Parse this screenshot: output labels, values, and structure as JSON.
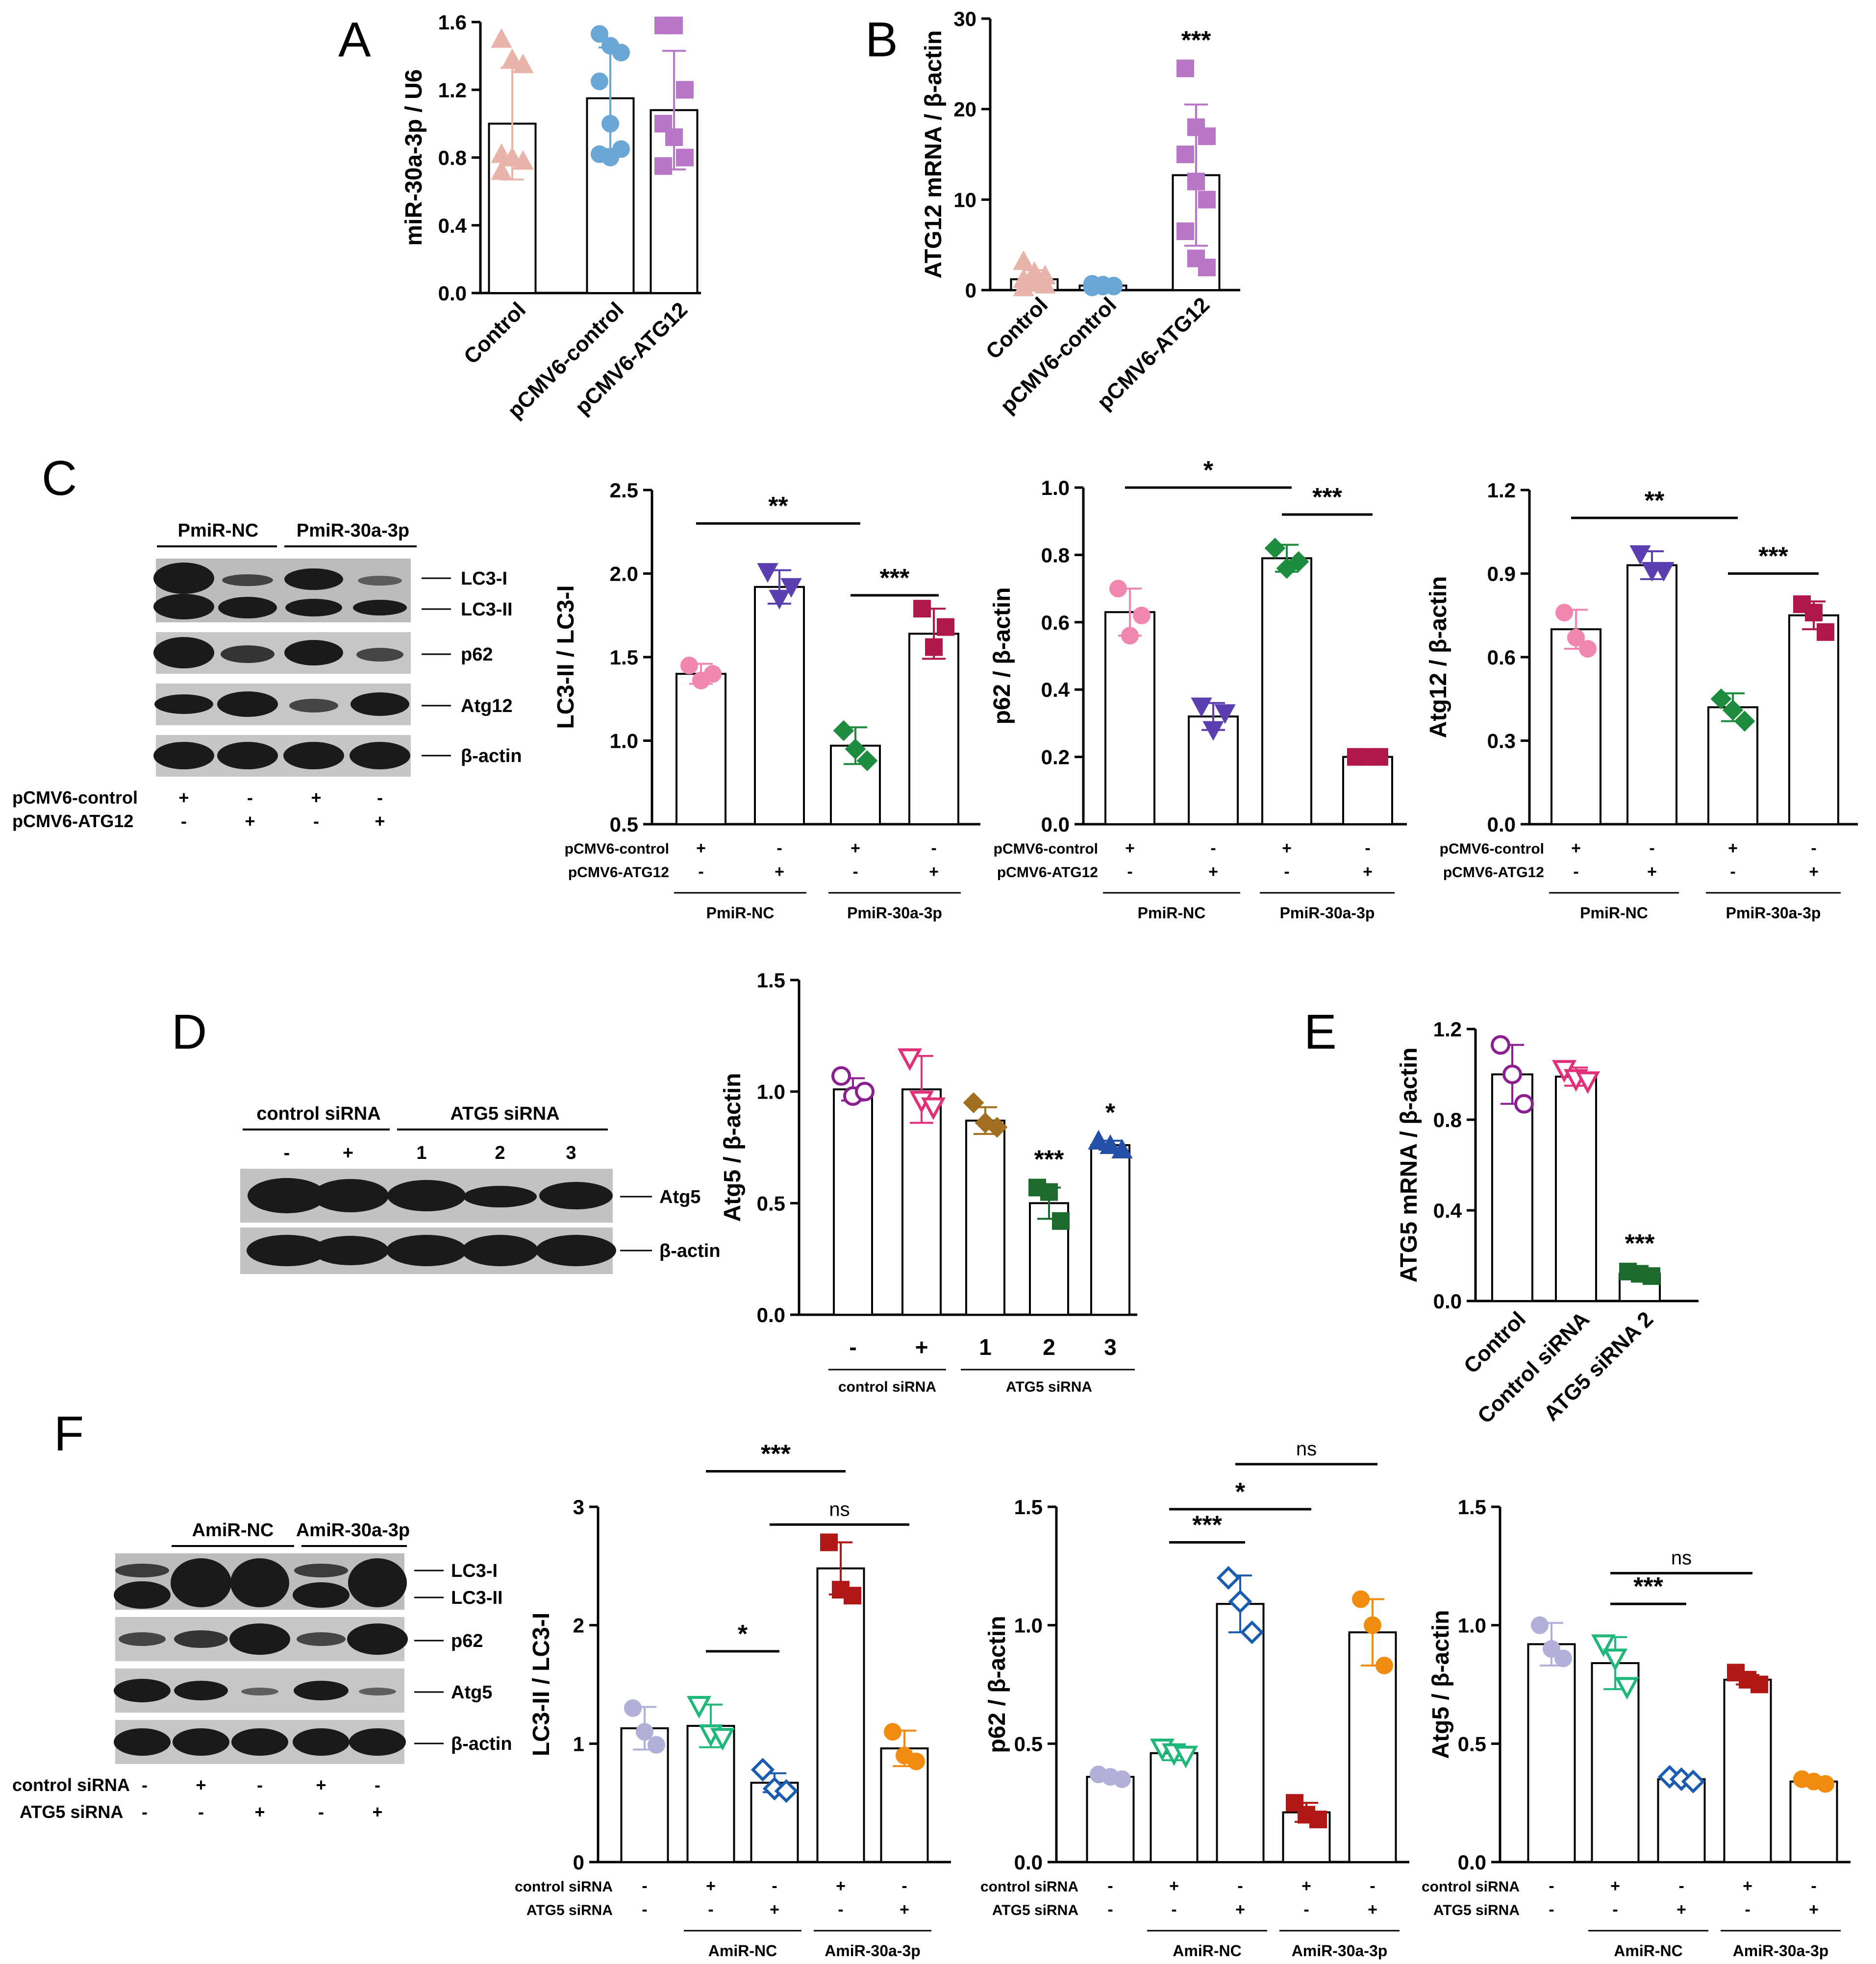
{
  "panel_letters": {
    "A": "A",
    "B": "B",
    "C": "C",
    "D": "D",
    "E": "E",
    "F": "F"
  },
  "chart_data": [
    {
      "id": "A",
      "type": "bar",
      "title": "",
      "ylabel": "miR-30a-3p / U6",
      "ylim": [
        0,
        1.6
      ],
      "yticks": [
        "0.0",
        "0.4",
        "0.8",
        "1.2",
        "1.6"
      ],
      "categories": [
        "Control",
        "pCMV6-control",
        "pCMV6-ATG12"
      ],
      "values": [
        1.0,
        1.15,
        1.08
      ],
      "errors": [
        0.33,
        0.3,
        0.35
      ],
      "colors": [
        "#e8b4aa",
        "#6aa7d4",
        "#b877c6"
      ],
      "markers": [
        "triangle",
        "circle",
        "square"
      ],
      "points": [
        [
          1.5,
          1.38,
          1.35,
          0.82,
          0.8,
          0.78,
          0.72
        ],
        [
          1.53,
          1.46,
          1.42,
          1.25,
          1.0,
          0.85,
          0.82,
          0.8
        ],
        [
          1.58,
          1.58,
          1.2,
          1.0,
          0.92,
          0.8,
          0.75
        ]
      ],
      "annotations": []
    },
    {
      "id": "B",
      "type": "bar",
      "title": "",
      "ylabel": "ATG12 mRNA / β-actin",
      "ylim": [
        0,
        30
      ],
      "yticks": [
        "0",
        "10",
        "20",
        "30"
      ],
      "categories": [
        "Control",
        "pCMV6-control",
        "pCMV6-ATG12"
      ],
      "values": [
        1.2,
        0.5,
        12.7
      ],
      "errors": [
        1.0,
        0.2,
        7.8
      ],
      "colors": [
        "#e8b4aa",
        "#6aa7d4",
        "#b877c6"
      ],
      "markers": [
        "triangle",
        "circle",
        "square"
      ],
      "points": [
        [
          3.2,
          2.0,
          1.6,
          1.2,
          0.8,
          0.6,
          0.3
        ],
        [
          0.7,
          0.6,
          0.5,
          0.5,
          0.4,
          0.4,
          0.3
        ],
        [
          24.5,
          18,
          17,
          15,
          12,
          10,
          6.5,
          3.5,
          2.5
        ]
      ],
      "annotations": [
        {
          "label": "***",
          "bar": 2
        }
      ]
    },
    {
      "id": "C1",
      "type": "bar",
      "ylabel": "LC3-II / LC3-I",
      "ylim": [
        0.5,
        2.5
      ],
      "yticks": [
        "0.5",
        "1.0",
        "1.5",
        "2.0",
        "2.5"
      ],
      "values": [
        1.4,
        1.92,
        0.97,
        1.64
      ],
      "errors": [
        0.06,
        0.1,
        0.11,
        0.15
      ],
      "colors": [
        "#f087b0",
        "#5b3fb0",
        "#1e8c3e",
        "#b0174a"
      ],
      "markers": [
        "circle",
        "tri-down",
        "diamond",
        "square"
      ],
      "points": [
        [
          1.45,
          1.36,
          1.4
        ],
        [
          2.01,
          1.85,
          1.92
        ],
        [
          1.06,
          0.95,
          0.88
        ],
        [
          1.79,
          1.56,
          1.68
        ]
      ],
      "row_labels": [
        "pCMV6-control",
        "pCMV6-ATG12"
      ],
      "row1": [
        "+",
        "-",
        "+",
        "-"
      ],
      "row2": [
        "-",
        "+",
        "-",
        "+"
      ],
      "groups": [
        "PmiR-NC",
        "PmiR-30a-3p"
      ],
      "brackets": [
        {
          "from": 0,
          "to": 2,
          "label": "**",
          "y": 2.3
        },
        {
          "from": 2,
          "to": 3,
          "label": "***",
          "y": 1.87
        }
      ]
    },
    {
      "id": "C2",
      "type": "bar",
      "ylabel": "p62 / β-actin",
      "ylim": [
        0,
        1.0
      ],
      "yticks": [
        "0.0",
        "0.2",
        "0.4",
        "0.6",
        "0.8",
        "1.0"
      ],
      "values": [
        0.63,
        0.32,
        0.79,
        0.2
      ],
      "errors": [
        0.07,
        0.04,
        0.04,
        0.01
      ],
      "colors": [
        "#f087b0",
        "#5b3fb0",
        "#1e8c3e",
        "#b0174a"
      ],
      "markers": [
        "circle",
        "tri-down",
        "diamond",
        "square"
      ],
      "points": [
        [
          0.7,
          0.56,
          0.62
        ],
        [
          0.35,
          0.28,
          0.33
        ],
        [
          0.82,
          0.76,
          0.78
        ],
        [
          0.2,
          0.2,
          0.2
        ]
      ],
      "row_labels": [
        "pCMV6-control",
        "pCMV6-ATG12"
      ],
      "row1": [
        "+",
        "-",
        "+",
        "-"
      ],
      "row2": [
        "-",
        "+",
        "-",
        "+"
      ],
      "groups": [
        "PmiR-NC",
        "PmiR-30a-3p"
      ],
      "brackets": [
        {
          "from": 0,
          "to": 2,
          "label": "*",
          "y": 1.0
        },
        {
          "from": 2,
          "to": 3,
          "label": "***",
          "y": 0.92
        }
      ]
    },
    {
      "id": "C3",
      "type": "bar",
      "ylabel": "Atg12 / β-actin",
      "ylim": [
        0,
        1.2
      ],
      "yticks": [
        "0.0",
        "0.3",
        "0.6",
        "0.9",
        "1.2"
      ],
      "values": [
        0.7,
        0.93,
        0.42,
        0.75
      ],
      "errors": [
        0.07,
        0.05,
        0.05,
        0.05
      ],
      "colors": [
        "#f087b0",
        "#5b3fb0",
        "#1e8c3e",
        "#b0174a"
      ],
      "markers": [
        "circle",
        "tri-down",
        "diamond",
        "square"
      ],
      "points": [
        [
          0.76,
          0.67,
          0.63
        ],
        [
          0.97,
          0.91,
          0.91
        ],
        [
          0.45,
          0.41,
          0.37
        ],
        [
          0.79,
          0.76,
          0.69
        ]
      ],
      "row_labels": [
        "pCMV6-control",
        "pCMV6-ATG12"
      ],
      "row1": [
        "+",
        "-",
        "+",
        "-"
      ],
      "row2": [
        "-",
        "+",
        "-",
        "+"
      ],
      "groups": [
        "PmiR-NC",
        "PmiR-30a-3p"
      ],
      "brackets": [
        {
          "from": 0,
          "to": 2,
          "label": "**",
          "y": 1.1
        },
        {
          "from": 2,
          "to": 3,
          "label": "***",
          "y": 0.9
        }
      ]
    },
    {
      "id": "D",
      "type": "bar",
      "ylabel": "Atg5 / β-actin",
      "ylim": [
        0,
        1.5
      ],
      "yticks": [
        "0.0",
        "0.5",
        "1.0",
        "1.5"
      ],
      "categories": [
        "-",
        "+",
        "1",
        "2",
        "3"
      ],
      "values": [
        1.01,
        1.01,
        0.87,
        0.5,
        0.76
      ],
      "errors": [
        0.05,
        0.15,
        0.06,
        0.07,
        0.02
      ],
      "colors": [
        "#8a1f8f",
        "#e0307a",
        "#a07020",
        "#1c6a2c",
        "#2450a8"
      ],
      "markers": [
        "o-circle",
        "o-tri-down",
        "diamond",
        "square",
        "triangle"
      ],
      "points": [
        [
          1.07,
          0.98,
          1.0
        ],
        [
          1.15,
          0.96,
          0.93
        ],
        [
          0.95,
          0.86,
          0.84
        ],
        [
          0.57,
          0.55,
          0.42
        ],
        [
          0.78,
          0.76,
          0.74
        ]
      ],
      "groups": [
        "control siRNA",
        "ATG5 siRNA"
      ],
      "annotations": [
        {
          "label": "***",
          "bar": 3
        },
        {
          "label": "*",
          "bar": 4
        }
      ]
    },
    {
      "id": "E",
      "type": "bar",
      "ylabel": "ATG5 mRNA / β-actin",
      "ylim": [
        0,
        1.2
      ],
      "yticks": [
        "0.0",
        "0.4",
        "0.8",
        "1.2"
      ],
      "categories": [
        "Control",
        "Control siRNA",
        "ATG5 siRNA 2"
      ],
      "values": [
        1.0,
        0.99,
        0.12
      ],
      "errors": [
        0.13,
        0.04,
        0.01
      ],
      "colors": [
        "#8a1f8f",
        "#e0307a",
        "#1c6a2c"
      ],
      "markers": [
        "o-circle",
        "o-tri-down",
        "square"
      ],
      "points": [
        [
          1.13,
          1.0,
          0.87
        ],
        [
          1.02,
          0.98,
          0.97
        ],
        [
          0.13,
          0.12,
          0.11
        ]
      ],
      "annotations": [
        {
          "label": "***",
          "bar": 2
        }
      ]
    },
    {
      "id": "F1",
      "type": "bar",
      "ylabel": "LC3-II / LC3-I",
      "ylim": [
        0,
        3
      ],
      "yticks": [
        "0",
        "1",
        "2",
        "3"
      ],
      "values": [
        1.13,
        1.15,
        0.67,
        2.48,
        0.96
      ],
      "errors": [
        0.18,
        0.18,
        0.08,
        0.22,
        0.15
      ],
      "colors": [
        "#b0b0d8",
        "#20b87a",
        "#1a5cb0",
        "#b01818",
        "#f08c10"
      ],
      "markers": [
        "circle",
        "o-tri-down",
        "o-diamond",
        "square",
        "circle"
      ],
      "points": [
        [
          1.3,
          1.1,
          0.99
        ],
        [
          1.32,
          1.08,
          1.05
        ],
        [
          0.78,
          0.62,
          0.6
        ],
        [
          2.7,
          2.3,
          2.25
        ],
        [
          1.1,
          0.9,
          0.85
        ]
      ],
      "row_labels": [
        "control siRNA",
        "ATG5 siRNA"
      ],
      "row1": [
        "-",
        "+",
        "-",
        "+",
        "-"
      ],
      "row2": [
        "-",
        "-",
        "+",
        "-",
        "+"
      ],
      "groups": [
        "AmiR-NC",
        "AmiR-30a-3p"
      ],
      "brackets": [
        {
          "from": 1,
          "to": 2,
          "label": "*",
          "y": 1.78
        },
        {
          "from": 1,
          "to": 3,
          "label": "***",
          "y": 3.3
        },
        {
          "from": 2,
          "to": 4,
          "label": "ns",
          "y": 2.85
        }
      ]
    },
    {
      "id": "F2",
      "type": "bar",
      "ylabel": "p62 / β-actin",
      "ylim": [
        0,
        1.5
      ],
      "yticks": [
        "0.0",
        "0.5",
        "1.0",
        "1.5"
      ],
      "values": [
        0.36,
        0.46,
        1.09,
        0.21,
        0.97
      ],
      "errors": [
        0.01,
        0.03,
        0.12,
        0.04,
        0.14
      ],
      "colors": [
        "#b0b0d8",
        "#20b87a",
        "#1a5cb0",
        "#b01818",
        "#f08c10"
      ],
      "markers": [
        "circle",
        "o-tri-down",
        "o-diamond",
        "square",
        "circle"
      ],
      "points": [
        [
          0.37,
          0.36,
          0.35
        ],
        [
          0.48,
          0.46,
          0.45
        ],
        [
          1.2,
          1.1,
          0.97
        ],
        [
          0.25,
          0.2,
          0.18
        ],
        [
          1.11,
          1.0,
          0.83
        ]
      ],
      "row_labels": [
        "control siRNA",
        "ATG5 siRNA"
      ],
      "row1": [
        "-",
        "+",
        "-",
        "+",
        "-"
      ],
      "row2": [
        "-",
        "-",
        "+",
        "-",
        "+"
      ],
      "groups": [
        "AmiR-NC",
        "AmiR-30a-3p"
      ],
      "brackets": [
        {
          "from": 1,
          "to": 2,
          "label": "***",
          "y": 1.35
        },
        {
          "from": 1,
          "to": 3,
          "label": "*",
          "y": 1.49
        },
        {
          "from": 2,
          "to": 4,
          "label": "ns",
          "y": 1.68
        }
      ]
    },
    {
      "id": "F3",
      "type": "bar",
      "ylabel": "Atg5 / β-actin",
      "ylim": [
        0,
        1.5
      ],
      "yticks": [
        "0.0",
        "0.5",
        "1.0",
        "1.5"
      ],
      "values": [
        0.92,
        0.84,
        0.35,
        0.77,
        0.34
      ],
      "errors": [
        0.09,
        0.11,
        0.01,
        0.02,
        0.01
      ],
      "colors": [
        "#b0b0d8",
        "#20b87a",
        "#1a5cb0",
        "#b01818",
        "#f08c10"
      ],
      "markers": [
        "circle",
        "o-tri-down",
        "o-diamond",
        "square",
        "circle"
      ],
      "points": [
        [
          1.0,
          0.9,
          0.86
        ],
        [
          0.92,
          0.86,
          0.74
        ],
        [
          0.36,
          0.35,
          0.34
        ],
        [
          0.8,
          0.77,
          0.75
        ],
        [
          0.35,
          0.34,
          0.33
        ]
      ],
      "row_labels": [
        "control siRNA",
        "ATG5 siRNA"
      ],
      "row1": [
        "-",
        "+",
        "-",
        "+",
        "-"
      ],
      "row2": [
        "-",
        "-",
        "+",
        "-",
        "+"
      ],
      "groups": [
        "AmiR-NC",
        "AmiR-30a-3p"
      ],
      "brackets": [
        {
          "from": 1,
          "to": 2,
          "label": "***",
          "y": 1.09
        },
        {
          "from": 1,
          "to": 3,
          "label": "ns",
          "y": 1.22
        }
      ]
    }
  ],
  "blots": {
    "C": {
      "groups": [
        "PmiR-NC",
        "PmiR-30a-3p"
      ],
      "bands": [
        "LC3-I",
        "LC3-II",
        "p62",
        "Atg12",
        "β-actin"
      ],
      "row_labels": [
        "pCMV6-control",
        "pCMV6-ATG12"
      ],
      "row1": [
        "+",
        "-",
        "+",
        "-"
      ],
      "row2": [
        "-",
        "+",
        "-",
        "+"
      ]
    },
    "D": {
      "groups": [
        "control siRNA",
        "ATG5 siRNA"
      ],
      "lanes": [
        "-",
        "+",
        "1",
        "2",
        "3"
      ],
      "bands": [
        "Atg5",
        "β-actin"
      ]
    },
    "F": {
      "groups": [
        "AmiR-NC",
        "AmiR-30a-3p"
      ],
      "bands": [
        "LC3-I",
        "LC3-II",
        "p62",
        "Atg5",
        "β-actin"
      ],
      "row_labels": [
        "control siRNA",
        "ATG5 siRNA"
      ],
      "row1": [
        "-",
        "+",
        "-",
        "+",
        "-"
      ],
      "row2": [
        "-",
        "-",
        "+",
        "-",
        "+"
      ]
    }
  }
}
